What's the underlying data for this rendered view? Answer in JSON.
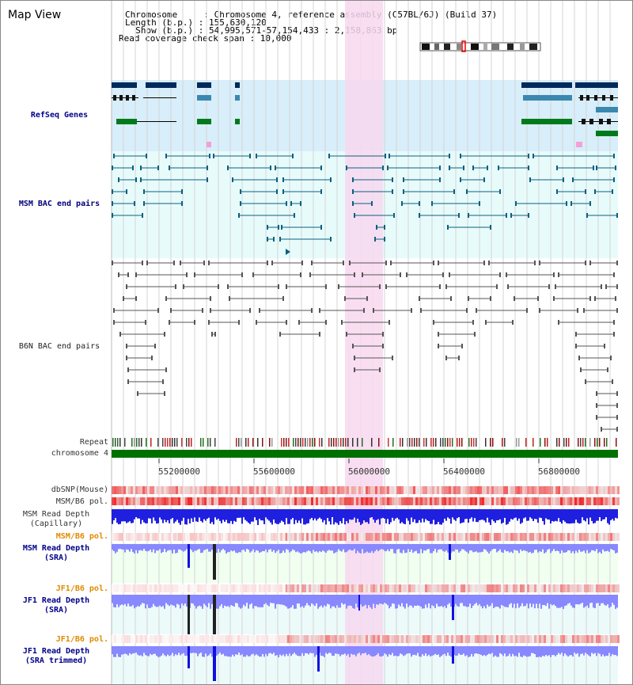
{
  "page": {
    "title": "Map View"
  },
  "header": {
    "chromosome_line": "Chromosome     : Chromosome 4, reference assembly (C57BL/6J) (Build 37)",
    "length_line": "Length (b.p.) : 155,630,120",
    "show_line": "  Show (b.p.) : 54,995,571-57,154,433 : 2,158,863 bp",
    "coverage_line": "Read coverage check span : 10,000"
  },
  "tracks": {
    "refseq": "RefSeq Genes",
    "msm_bac": "MSM BAC end pairs",
    "b6n_bac": "B6N BAC end pairs",
    "repeat": "Repeat",
    "chromosome": "chromosome 4",
    "dbsnp": "dbSNP(Mouse)",
    "msm_b6_pol": "MSM/B6 pol.",
    "msm_read_cap": "MSM Read Depth\n(Capillary)",
    "msm_b6_pol_2": "MSM/B6 pol.",
    "msm_read_sra": "MSM Read Depth\n(SRA)",
    "jf1_b6_pol": "JF1/B6 pol.",
    "jf1_read_sra": "JF1 Read Depth\n(SRA)",
    "jf1_b6_pol_2": "JF1/B6 pol.",
    "jf1_read_trim": "JF1 Read Depth\n(SRA trimmed)"
  },
  "axis": {
    "ticks": [
      "55200000",
      "55600000",
      "56000000",
      "56400000",
      "56800000"
    ]
  },
  "colors": {
    "highlight": "#f8d8f0",
    "refseq_bg": "#d8eefa",
    "bac_bg": "#e8fbfb",
    "chromosome_bar": "#007000",
    "depth_blue": "#1010e0",
    "depth_light": "#8888ff",
    "pol_red": "#ee2020"
  }
}
